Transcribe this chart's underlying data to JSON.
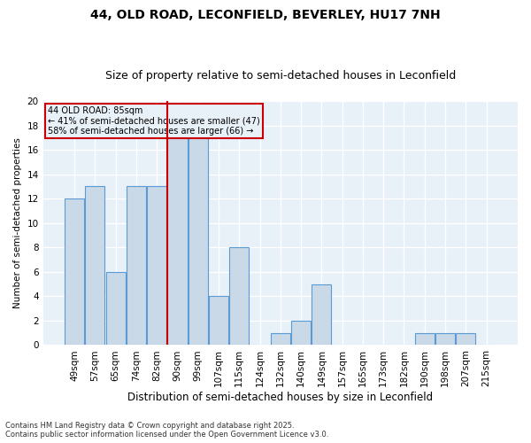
{
  "title1": "44, OLD ROAD, LECONFIELD, BEVERLEY, HU17 7NH",
  "title2": "Size of property relative to semi-detached houses in Leconfield",
  "xlabel": "Distribution of semi-detached houses by size in Leconfield",
  "ylabel": "Number of semi-detached properties",
  "categories": [
    "49sqm",
    "57sqm",
    "65sqm",
    "74sqm",
    "82sqm",
    "90sqm",
    "99sqm",
    "107sqm",
    "115sqm",
    "124sqm",
    "132sqm",
    "140sqm",
    "149sqm",
    "157sqm",
    "165sqm",
    "173sqm",
    "182sqm",
    "190sqm",
    "198sqm",
    "207sqm",
    "215sqm"
  ],
  "values": [
    12,
    13,
    6,
    13,
    13,
    17,
    17,
    4,
    8,
    0,
    1,
    2,
    5,
    0,
    0,
    0,
    0,
    1,
    1,
    1,
    0
  ],
  "bar_color": "#c9d9e8",
  "bar_edge_color": "#5b9bd5",
  "property_bin_index": 4.5,
  "annotation_title": "44 OLD ROAD: 85sqm",
  "annotation_line1": "← 41% of semi-detached houses are smaller (47)",
  "annotation_line2": "58% of semi-detached houses are larger (66) →",
  "vline_color": "#cc0000",
  "annotation_box_edge": "#cc0000",
  "ylim": [
    0,
    20
  ],
  "yticks": [
    0,
    2,
    4,
    6,
    8,
    10,
    12,
    14,
    16,
    18,
    20
  ],
  "footer1": "Contains HM Land Registry data © Crown copyright and database right 2025.",
  "footer2": "Contains public sector information licensed under the Open Government Licence v3.0.",
  "bg_color": "#e8f0f8",
  "fig_bg_color": "#ffffff",
  "grid_color": "#ffffff",
  "title_fontsize": 10,
  "subtitle_fontsize": 9
}
